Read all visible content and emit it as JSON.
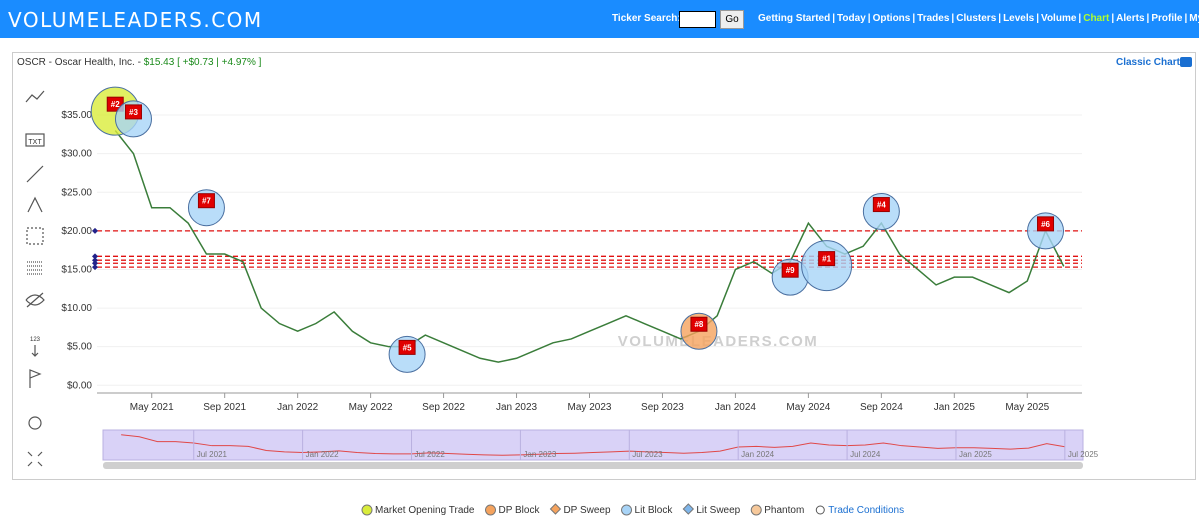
{
  "header": {
    "logo": "VOLUMELEADERS.COM",
    "search_label": "Ticker Search:",
    "go": "Go",
    "nav": [
      "Getting Started",
      "Today",
      "Options",
      "Trades",
      "Clusters",
      "Levels",
      "Volume",
      "Chart",
      "Alerts",
      "Profile",
      "My Subs"
    ],
    "separator": "|",
    "active": "Chart",
    "active_color": "#adff2f"
  },
  "panel": {
    "name": "OSCR - Oscar Health, Inc. -",
    "price": "$15.43",
    "change": "[ +$0.73 | +4.97% ]",
    "classic": "Classic Chart"
  },
  "toolbar": [
    "TXT",
    "123"
  ],
  "chart": {
    "type": "line",
    "color": "#3a7d3a",
    "x": [
      "2021-03",
      "2021-04",
      "2021-05",
      "2021-06",
      "2021-07",
      "2021-08",
      "2021-09",
      "2021-10",
      "2021-11",
      "2021-12",
      "2022-01",
      "2022-02",
      "2022-03",
      "2022-04",
      "2022-05",
      "2022-06",
      "2022-07",
      "2022-08",
      "2022-09",
      "2022-10",
      "2022-11",
      "2022-12",
      "2023-01",
      "2023-02",
      "2023-03",
      "2023-04",
      "2023-05",
      "2023-06",
      "2023-07",
      "2023-08",
      "2023-09",
      "2023-10",
      "2023-11",
      "2023-12",
      "2024-01",
      "2024-02",
      "2024-03",
      "2024-04",
      "2024-05",
      "2024-06",
      "2024-07",
      "2024-08",
      "2024-09",
      "2024-10",
      "2024-11",
      "2024-12",
      "2025-01",
      "2025-02",
      "2025-03",
      "2025-04",
      "2025-05",
      "2025-06",
      "2025-07"
    ],
    "values": [
      33,
      30,
      23,
      23,
      21,
      17,
      17,
      16,
      10,
      8,
      7,
      8,
      9.5,
      7,
      5.5,
      5,
      5,
      6.5,
      5.5,
      4.5,
      3.5,
      3,
      3.5,
      4.5,
      5.5,
      6,
      7,
      8,
      9,
      8,
      7,
      6,
      7,
      9,
      15,
      16,
      14.5,
      16,
      21,
      18,
      17,
      18,
      21,
      17,
      15,
      13,
      14,
      14,
      13,
      12,
      13.5,
      20,
      15.4
    ],
    "xlim": [
      "2021-02",
      "2025-08"
    ],
    "ylim": [
      -1,
      37
    ],
    "yticks": [
      {
        "value": 0,
        "label": "$0.00"
      },
      {
        "value": 5,
        "label": "$5.00"
      },
      {
        "value": 10,
        "label": "$10.00"
      },
      {
        "value": 15,
        "label": "$15.00"
      },
      {
        "value": 20,
        "label": "$20.00"
      },
      {
        "value": 25,
        "label": "$25.00"
      },
      {
        "value": 30,
        "label": "$30.00"
      },
      {
        "value": 35,
        "label": "$35.00"
      }
    ],
    "xticks": [
      {
        "value": "2021-05",
        "label": "May 2021"
      },
      {
        "value": "2021-09",
        "label": "Sep 2021"
      },
      {
        "value": "2022-01",
        "label": "Jan 2022"
      },
      {
        "value": "2022-05",
        "label": "May 2022"
      },
      {
        "value": "2022-09",
        "label": "Sep 2022"
      },
      {
        "value": "2023-01",
        "label": "Jan 2023"
      },
      {
        "value": "2023-05",
        "label": "May 2023"
      },
      {
        "value": "2023-09",
        "label": "Sep 2023"
      },
      {
        "value": "2024-01",
        "label": "Jan 2024"
      },
      {
        "value": "2024-05",
        "label": "May 2024"
      },
      {
        "value": "2024-09",
        "label": "Sep 2024"
      },
      {
        "value": "2025-01",
        "label": "Jan 2025"
      },
      {
        "value": "2025-05",
        "label": "May 2025"
      }
    ],
    "levels": [
      20,
      16.7,
      16.2,
      15.8,
      15.3
    ],
    "level_color": "#e01010",
    "trades": [
      {
        "label": "#2",
        "x": "2021-03",
        "value": 35.5,
        "kind": "Market Opening Trade"
      },
      {
        "label": "#3",
        "x": "2021-04",
        "value": 34.5,
        "kind": "Lit Block"
      },
      {
        "label": "#7",
        "x": "2021-08",
        "value": 23,
        "kind": "Lit Block"
      },
      {
        "label": "#5",
        "x": "2022-07",
        "value": 4,
        "kind": "Lit Block"
      },
      {
        "label": "#8",
        "x": "2023-11",
        "value": 7,
        "kind": "DP Block"
      },
      {
        "label": "#9",
        "x": "2024-04",
        "value": 14,
        "kind": "Lit Block"
      },
      {
        "label": "#1",
        "x": "2024-06",
        "value": 15.5,
        "kind": "Lit Block"
      },
      {
        "label": "#4",
        "x": "2024-09",
        "value": 22.5,
        "kind": "Lit Block"
      },
      {
        "label": "#6",
        "x": "2025-06",
        "value": 20,
        "kind": "Lit Block"
      }
    ],
    "watermark": "VOLUMELEADERS.COM",
    "navigator_ticks": [
      {
        "value": "2021-07",
        "label": "Jul 2021"
      },
      {
        "value": "2022-01",
        "label": "Jan 2022"
      },
      {
        "value": "2022-07",
        "label": "Jul 2022"
      },
      {
        "value": "2023-01",
        "label": "Jan 2023"
      },
      {
        "value": "2023-07",
        "label": "Jul 2023"
      },
      {
        "value": "2024-01",
        "label": "Jan 2024"
      },
      {
        "value": "2024-07",
        "label": "Jul 2024"
      },
      {
        "value": "2025-01",
        "label": "Jan 2025"
      },
      {
        "value": "2025-07",
        "label": "Jul 2025"
      }
    ]
  },
  "legend": [
    {
      "name": "Market Opening Trade",
      "color": "#d9ec3b",
      "shape": "circle"
    },
    {
      "name": "DP Block",
      "color": "#f5a35e",
      "shape": "circle"
    },
    {
      "name": "DP Sweep",
      "color": "#f5a35e",
      "shape": "diamond"
    },
    {
      "name": "Lit Block",
      "color": "#a8d4f7",
      "shape": "circle"
    },
    {
      "name": "Lit Sweep",
      "color": "#7fb6ea",
      "shape": "diamond"
    },
    {
      "name": "Phantom",
      "color": "#f7c99b",
      "shape": "circle"
    },
    {
      "name": "Trade Conditions",
      "color": "#1a6fd1",
      "shape": "link"
    }
  ]
}
